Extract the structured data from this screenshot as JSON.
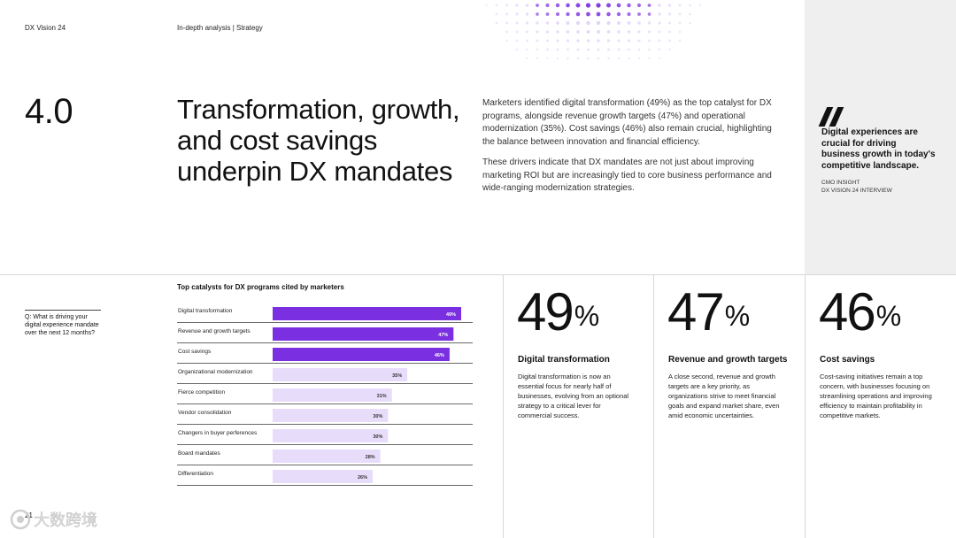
{
  "header": {
    "brand": "DX Vision 24",
    "breadcrumb": "In-depth analysis | Strategy"
  },
  "section": {
    "number": "4.0",
    "headline": "Transformation, growth, and cost savings underpin DX mandates",
    "paragraphs": [
      "Marketers identified digital transformation (49%) as the top catalyst for DX programs, alongside revenue growth targets (47%) and operational modernization (35%). Cost savings (46%) also remain crucial, highlighting the balance between innovation and financial efficiency.",
      "These drivers indicate that DX mandates are not just about improving marketing ROI but are increasingly tied to core business performance and wide-ranging modernization strategies."
    ]
  },
  "quote": {
    "mark": "❞",
    "text": "Digital experiences are crucial for driving business growth in today's competitive landscape.",
    "source_line1": "CMO INSIGHT",
    "source_line2": "DX VISION 24 INTERVIEW"
  },
  "question": "Q: What is driving your digital experience mandate over the next 12 months?",
  "chart_data": {
    "type": "bar",
    "orientation": "horizontal",
    "title": "Top catalysts for DX programs cited by marketers",
    "categories": [
      "Digital transformation",
      "Revenue and growth targets",
      "Cost savings",
      "Organizational modernization",
      "Fierce competition",
      "Vendor consolidation",
      "Changers in buyer perferences",
      "Board mandates",
      "Differentiation"
    ],
    "values": [
      49,
      47,
      46,
      35,
      31,
      30,
      30,
      28,
      26
    ],
    "value_labels": [
      "49%",
      "47%",
      "46%",
      "35%",
      "31%",
      "30%",
      "30%",
      "28%",
      "26%"
    ],
    "unit": "%",
    "xlim": [
      0,
      52
    ],
    "highlight_top": 3,
    "colors": {
      "highlight": "#7a2fe0",
      "base": "#e8dcfb",
      "label_on_highlight": "#ffffff",
      "label_on_base": "#333333"
    }
  },
  "stats": [
    {
      "value": "49",
      "unit": "%",
      "title": "Digital transformation",
      "desc": "Digital transformation is now an essential focus for nearly half of businesses, evolving from an optional strategy to a critical lever for commercial success."
    },
    {
      "value": "47",
      "unit": "%",
      "title": "Revenue and growth targets",
      "desc": "A close second, revenue and growth targets are a key priority, as organizations strive to meet financial goals and expand market share, even amid economic uncertainties."
    },
    {
      "value": "46",
      "unit": "%",
      "title": "Cost savings",
      "desc": "Cost-saving initiatives remain a top concern, with businesses focusing on streamlining operations and improving efficiency to maintain profitability in competitive markets."
    }
  ],
  "footer": {
    "page": "21",
    "watermark": "大数跨境"
  },
  "colors": {
    "accent": "#7a2fe0",
    "dot_light": "#d9c6f7",
    "panel": "#efefef",
    "divider": "#d8d8d8"
  }
}
